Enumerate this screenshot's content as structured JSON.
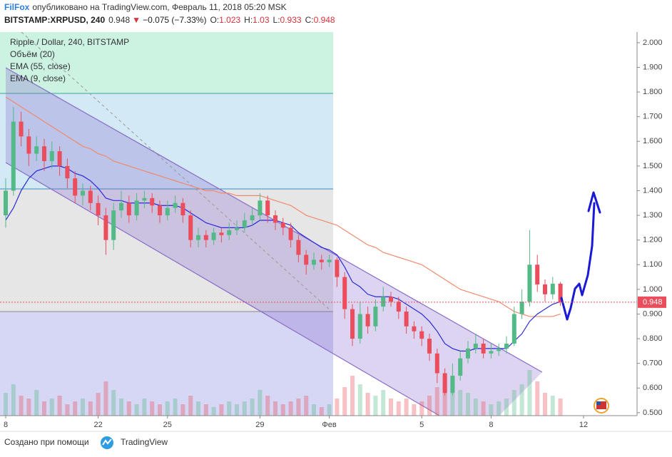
{
  "header": {
    "author": "FilFox",
    "published": "опубликовано на TradingView.com, Февраль 11, 2018 05:20 MSK",
    "symbol": "BITSTAMP:XRPUSD, 240",
    "direction": "▼",
    "change": "−0.075 (−7.33%)",
    "ohlc_labels": [
      "O:",
      "H:",
      "L:",
      "C:"
    ]
  },
  "chart_data": {
    "type": "candlestick",
    "title": "Ripple / Dollar, 240, BITSTAMP",
    "categories": [
      "8",
      null,
      null,
      null,
      null,
      null,
      null,
      null,
      null,
      null,
      null,
      null,
      "22",
      null,
      null,
      null,
      null,
      null,
      null,
      null,
      null,
      "25",
      null,
      null,
      null,
      null,
      null,
      null,
      null,
      null,
      null,
      null,
      null,
      "29",
      null,
      null,
      null,
      null,
      null,
      null,
      null,
      null,
      "Фев",
      null,
      null,
      null,
      null,
      null,
      null,
      null,
      null,
      null,
      null,
      null,
      "5",
      null,
      null,
      null,
      null,
      null,
      null,
      null,
      null,
      "8",
      null,
      null,
      null,
      null,
      null,
      null,
      null,
      null,
      null,
      null,
      null,
      "12"
    ],
    "open": [
      1.3,
      1.4,
      1.68,
      1.62,
      1.55,
      1.58,
      1.52,
      1.56,
      1.5,
      1.45,
      1.38,
      1.4,
      1.35,
      1.3,
      1.2,
      1.32,
      1.35,
      1.3,
      1.36,
      1.37,
      1.34,
      1.3,
      1.33,
      1.35,
      1.3,
      1.2,
      1.22,
      1.2,
      1.23,
      1.22,
      1.24,
      1.25,
      1.28,
      1.3,
      1.36,
      1.3,
      1.27,
      1.25,
      1.2,
      1.14,
      1.1,
      1.12,
      1.11,
      1.12,
      1.05,
      0.92,
      0.8,
      0.9,
      0.85,
      0.93,
      0.97,
      0.95,
      0.91,
      0.85,
      0.83,
      0.8,
      0.74,
      0.66,
      0.58,
      0.65,
      0.72,
      0.76,
      0.78,
      0.74,
      0.75,
      0.76,
      0.78,
      0.9,
      0.95,
      1.1,
      1.02,
      0.98,
      1.023,
      null,
      null,
      null
    ],
    "high": [
      1.45,
      1.74,
      1.72,
      1.65,
      1.62,
      1.61,
      1.6,
      1.58,
      1.53,
      1.48,
      1.43,
      1.42,
      1.38,
      1.33,
      1.35,
      1.4,
      1.38,
      1.39,
      1.4,
      1.39,
      1.36,
      1.36,
      1.38,
      1.37,
      1.32,
      1.25,
      1.24,
      1.25,
      1.25,
      1.27,
      1.28,
      1.31,
      1.33,
      1.39,
      1.38,
      1.32,
      1.29,
      1.27,
      1.22,
      1.16,
      1.15,
      1.14,
      1.14,
      1.13,
      1.07,
      0.94,
      0.95,
      0.93,
      0.96,
      1.01,
      0.99,
      0.97,
      0.93,
      0.87,
      0.85,
      0.82,
      0.76,
      0.68,
      0.7,
      0.75,
      0.79,
      0.82,
      0.8,
      0.78,
      0.78,
      0.81,
      0.93,
      1.0,
      1.24,
      1.14,
      1.04,
      1.05,
      1.03,
      null,
      null,
      null
    ],
    "low": [
      1.25,
      1.38,
      1.58,
      1.5,
      1.52,
      1.48,
      1.49,
      1.46,
      1.41,
      1.35,
      1.34,
      1.32,
      1.26,
      1.14,
      1.16,
      1.29,
      1.27,
      1.28,
      1.33,
      1.31,
      1.27,
      1.28,
      1.31,
      1.27,
      1.17,
      1.17,
      1.17,
      1.18,
      1.19,
      1.2,
      1.22,
      1.23,
      1.26,
      1.28,
      1.27,
      1.24,
      1.22,
      1.17,
      1.11,
      1.06,
      1.08,
      1.08,
      1.09,
      1.01,
      0.88,
      0.77,
      0.78,
      0.82,
      0.83,
      0.91,
      0.93,
      0.88,
      0.82,
      0.8,
      0.77,
      0.71,
      0.62,
      0.57,
      0.57,
      0.63,
      0.7,
      0.74,
      0.72,
      0.72,
      0.73,
      0.74,
      0.77,
      0.88,
      0.93,
      0.99,
      0.95,
      0.96,
      0.933,
      null,
      null,
      null
    ],
    "close": [
      1.4,
      1.68,
      1.62,
      1.55,
      1.58,
      1.52,
      1.56,
      1.5,
      1.45,
      1.38,
      1.4,
      1.35,
      1.3,
      1.2,
      1.32,
      1.35,
      1.3,
      1.36,
      1.37,
      1.34,
      1.3,
      1.33,
      1.35,
      1.3,
      1.2,
      1.22,
      1.2,
      1.23,
      1.22,
      1.24,
      1.25,
      1.28,
      1.3,
      1.36,
      1.3,
      1.27,
      1.25,
      1.2,
      1.14,
      1.1,
      1.12,
      1.11,
      1.12,
      1.05,
      0.92,
      0.8,
      0.9,
      0.85,
      0.93,
      0.97,
      0.95,
      0.91,
      0.85,
      0.83,
      0.8,
      0.74,
      0.66,
      0.58,
      0.65,
      0.72,
      0.76,
      0.78,
      0.74,
      0.75,
      0.76,
      0.78,
      0.9,
      0.95,
      1.1,
      1.02,
      0.98,
      1.023,
      0.948,
      null,
      null,
      null
    ],
    "colors": {
      "up": "#53b987",
      "down": "#eb4d5c"
    },
    "volume": {
      "name": "Объём (20)",
      "values": [
        40,
        55,
        35,
        30,
        45,
        25,
        30,
        35,
        20,
        25,
        30,
        25,
        40,
        60,
        45,
        30,
        25,
        20,
        30,
        25,
        20,
        25,
        30,
        20,
        35,
        25,
        20,
        15,
        20,
        25,
        20,
        25,
        30,
        45,
        35,
        25,
        20,
        25,
        30,
        35,
        20,
        15,
        20,
        30,
        50,
        70,
        55,
        40,
        35,
        45,
        30,
        25,
        30,
        20,
        25,
        35,
        50,
        65,
        60,
        45,
        40,
        30,
        25,
        20,
        25,
        30,
        45,
        55,
        80,
        60,
        40,
        35,
        30,
        null,
        null,
        null
      ]
    },
    "series": [
      {
        "name": "EMA (55, close)",
        "color": "#f08a6c",
        "values": [
          1.78,
          1.76,
          1.74,
          1.72,
          1.7,
          1.68,
          1.66,
          1.64,
          1.62,
          1.6,
          1.58,
          1.57,
          1.55,
          1.54,
          1.52,
          1.51,
          1.5,
          1.49,
          1.48,
          1.47,
          1.46,
          1.45,
          1.44,
          1.43,
          1.42,
          1.41,
          1.4,
          1.4,
          1.39,
          1.39,
          1.38,
          1.38,
          1.38,
          1.38,
          1.37,
          1.36,
          1.35,
          1.34,
          1.32,
          1.3,
          1.29,
          1.28,
          1.27,
          1.26,
          1.24,
          1.22,
          1.2,
          1.18,
          1.17,
          1.15,
          1.14,
          1.13,
          1.12,
          1.11,
          1.1,
          1.08,
          1.06,
          1.04,
          1.02,
          1.0,
          0.99,
          0.98,
          0.97,
          0.96,
          0.95,
          0.93,
          0.91,
          0.9,
          0.89,
          0.89,
          0.89,
          0.89,
          0.9,
          null,
          null,
          null
        ]
      },
      {
        "name": "EMA (9, close)",
        "color": "#2a2ad8",
        "values": [
          1.28,
          1.33,
          1.4,
          1.45,
          1.48,
          1.49,
          1.5,
          1.5,
          1.49,
          1.47,
          1.46,
          1.44,
          1.41,
          1.37,
          1.36,
          1.36,
          1.35,
          1.35,
          1.35,
          1.35,
          1.34,
          1.34,
          1.34,
          1.33,
          1.31,
          1.29,
          1.27,
          1.26,
          1.25,
          1.25,
          1.25,
          1.25,
          1.26,
          1.28,
          1.28,
          1.28,
          1.27,
          1.26,
          1.23,
          1.21,
          1.19,
          1.17,
          1.16,
          1.14,
          1.09,
          1.03,
          1.01,
          0.98,
          0.97,
          0.97,
          0.97,
          0.96,
          0.94,
          0.92,
          0.9,
          0.87,
          0.83,
          0.78,
          0.76,
          0.75,
          0.75,
          0.76,
          0.76,
          0.76,
          0.76,
          0.76,
          0.79,
          0.82,
          0.87,
          0.9,
          0.92,
          0.94,
          0.95,
          null,
          null,
          null
        ]
      }
    ],
    "ylim": [
      0.488,
      2.043
    ],
    "yticks": [
      {
        "value": 0.5,
        "label": "0.500"
      },
      {
        "value": 0.6,
        "label": "0.600"
      },
      {
        "value": 0.7,
        "label": "0.700"
      },
      {
        "value": 0.8,
        "label": "0.800"
      },
      {
        "value": 0.9,
        "label": "0.900"
      },
      {
        "value": 1.0,
        "label": "1.000"
      },
      {
        "value": 1.1,
        "label": "1.100"
      },
      {
        "value": 1.2,
        "label": "1.200"
      },
      {
        "value": 1.3,
        "label": "1.300"
      },
      {
        "value": 1.4,
        "label": "1.400"
      },
      {
        "value": 1.5,
        "label": "1.500"
      },
      {
        "value": 1.6,
        "label": "1.600"
      },
      {
        "value": 1.7,
        "label": "1.700"
      },
      {
        "value": 1.8,
        "label": "1.800"
      },
      {
        "value": 1.9,
        "label": "1.900"
      },
      {
        "value": 2.0,
        "label": "2.000"
      }
    ]
  },
  "footer": {
    "text": "Создано при помощи",
    "brand": "TradingView"
  }
}
